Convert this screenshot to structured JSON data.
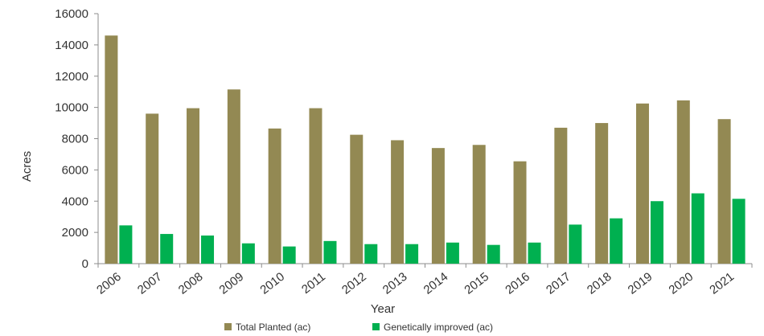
{
  "chart_data": {
    "type": "bar",
    "title": "",
    "xlabel": "Year",
    "ylabel": "Acres",
    "ylim": [
      0,
      16000
    ],
    "yticks": [
      0,
      2000,
      4000,
      6000,
      8000,
      10000,
      12000,
      14000,
      16000
    ],
    "grid": false,
    "legend_position": "bottom",
    "categories": [
      "2006",
      "2007",
      "2008",
      "2009",
      "2010",
      "2011",
      "2012",
      "2013",
      "2014",
      "2015",
      "2016",
      "2017",
      "2018",
      "2019",
      "2020",
      "2021"
    ],
    "series": [
      {
        "name": "Total Planted (ac)",
        "color": "#938953",
        "values": [
          14600,
          9600,
          9950,
          11150,
          8650,
          9950,
          8250,
          7900,
          7400,
          7600,
          6550,
          8700,
          9000,
          10250,
          10450,
          9250
        ]
      },
      {
        "name": "Genetically improved (ac)",
        "color": "#00b050",
        "values": [
          2450,
          1900,
          1800,
          1300,
          1100,
          1450,
          1250,
          1250,
          1350,
          1200,
          1350,
          2500,
          2900,
          4000,
          4500,
          4150
        ]
      }
    ]
  }
}
